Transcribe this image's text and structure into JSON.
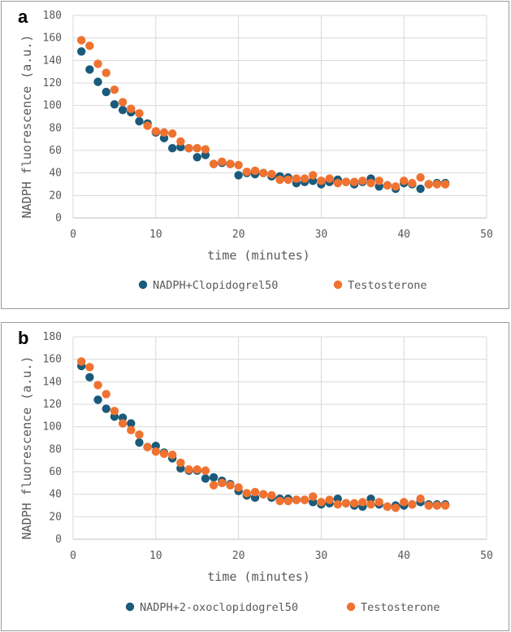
{
  "panels": [
    {
      "label": "a",
      "chart_data": {
        "type": "scatter",
        "xlabel": "time (minutes)",
        "ylabel": "NADPH fluorescence (a.u.)",
        "xlim": [
          0,
          50
        ],
        "ylim": [
          0,
          180
        ],
        "xticks": [
          0,
          10,
          20,
          30,
          40,
          50
        ],
        "yticks": [
          0,
          20,
          40,
          60,
          80,
          100,
          120,
          140,
          160,
          180
        ],
        "grid": true,
        "legend_position": "bottom",
        "x": [
          1,
          2,
          3,
          4,
          5,
          6,
          7,
          8,
          9,
          10,
          11,
          12,
          13,
          14,
          15,
          16,
          17,
          18,
          19,
          20,
          21,
          22,
          23,
          24,
          25,
          26,
          27,
          28,
          29,
          30,
          31,
          32,
          33,
          34,
          35,
          36,
          37,
          38,
          39,
          40,
          41,
          42,
          43,
          44,
          45
        ],
        "series": [
          {
            "name": "NADPH+Clopidogrel50",
            "color": "#1a5a7a",
            "values": [
              148,
              132,
              121,
              112,
              101,
              96,
              94,
              86,
              84,
              76,
              71,
              62,
              63,
              62,
              54,
              56,
              48,
              49,
              48,
              38,
              40,
              39,
              40,
              37,
              37,
              36,
              31,
              32,
              33,
              30,
              32,
              34,
              32,
              30,
              32,
              35,
              28,
              29,
              26,
              31,
              30,
              26,
              30,
              31,
              31
            ]
          },
          {
            "name": "Testosterone",
            "color": "#f07230",
            "values": [
              158,
              153,
              137,
              129,
              114,
              103,
              97,
              93,
              82,
              77,
              76,
              75,
              68,
              62,
              62,
              61,
              48,
              50,
              48,
              47,
              41,
              42,
              40,
              39,
              34,
              34,
              35,
              35,
              38,
              33,
              35,
              31,
              32,
              32,
              33,
              31,
              33,
              29,
              28,
              33,
              31,
              36,
              30,
              30,
              30
            ]
          }
        ]
      }
    },
    {
      "label": "b",
      "chart_data": {
        "type": "scatter",
        "xlabel": "time (minutes)",
        "ylabel": "NADPH fluorescence (a.u.)",
        "xlim": [
          0,
          50
        ],
        "ylim": [
          0,
          180
        ],
        "xticks": [
          0,
          10,
          20,
          30,
          40,
          50
        ],
        "yticks": [
          0,
          20,
          40,
          60,
          80,
          100,
          120,
          140,
          160,
          180
        ],
        "grid": true,
        "legend_position": "bottom",
        "x": [
          1,
          2,
          3,
          4,
          5,
          6,
          7,
          8,
          9,
          10,
          11,
          12,
          13,
          14,
          15,
          16,
          17,
          18,
          19,
          20,
          21,
          22,
          23,
          24,
          25,
          26,
          27,
          28,
          29,
          30,
          31,
          32,
          33,
          34,
          35,
          36,
          37,
          38,
          39,
          40,
          41,
          42,
          43,
          44,
          45
        ],
        "series": [
          {
            "name": "NADPH+2-oxoclopidogrel50",
            "color": "#1a5a7a",
            "values": [
              154,
              144,
              124,
              116,
              109,
              108,
              103,
              86,
              82,
              83,
              77,
              72,
              63,
              61,
              61,
              54,
              55,
              52,
              49,
              43,
              39,
              37,
              40,
              37,
              36,
              36,
              35,
              35,
              33,
              31,
              32,
              36,
              32,
              30,
              29,
              36,
              31,
              29,
              30,
              30,
              31,
              33,
              31,
              31,
              31
            ]
          },
          {
            "name": "Testosterone",
            "color": "#f07230",
            "values": [
              158,
              153,
              137,
              129,
              114,
              103,
              97,
              93,
              82,
              78,
              76,
              75,
              68,
              62,
              62,
              61,
              48,
              50,
              48,
              46,
              41,
              42,
              40,
              39,
              34,
              34,
              35,
              35,
              38,
              33,
              35,
              31,
              32,
              32,
              33,
              31,
              33,
              29,
              28,
              33,
              31,
              36,
              30,
              30,
              30
            ]
          }
        ]
      }
    }
  ]
}
